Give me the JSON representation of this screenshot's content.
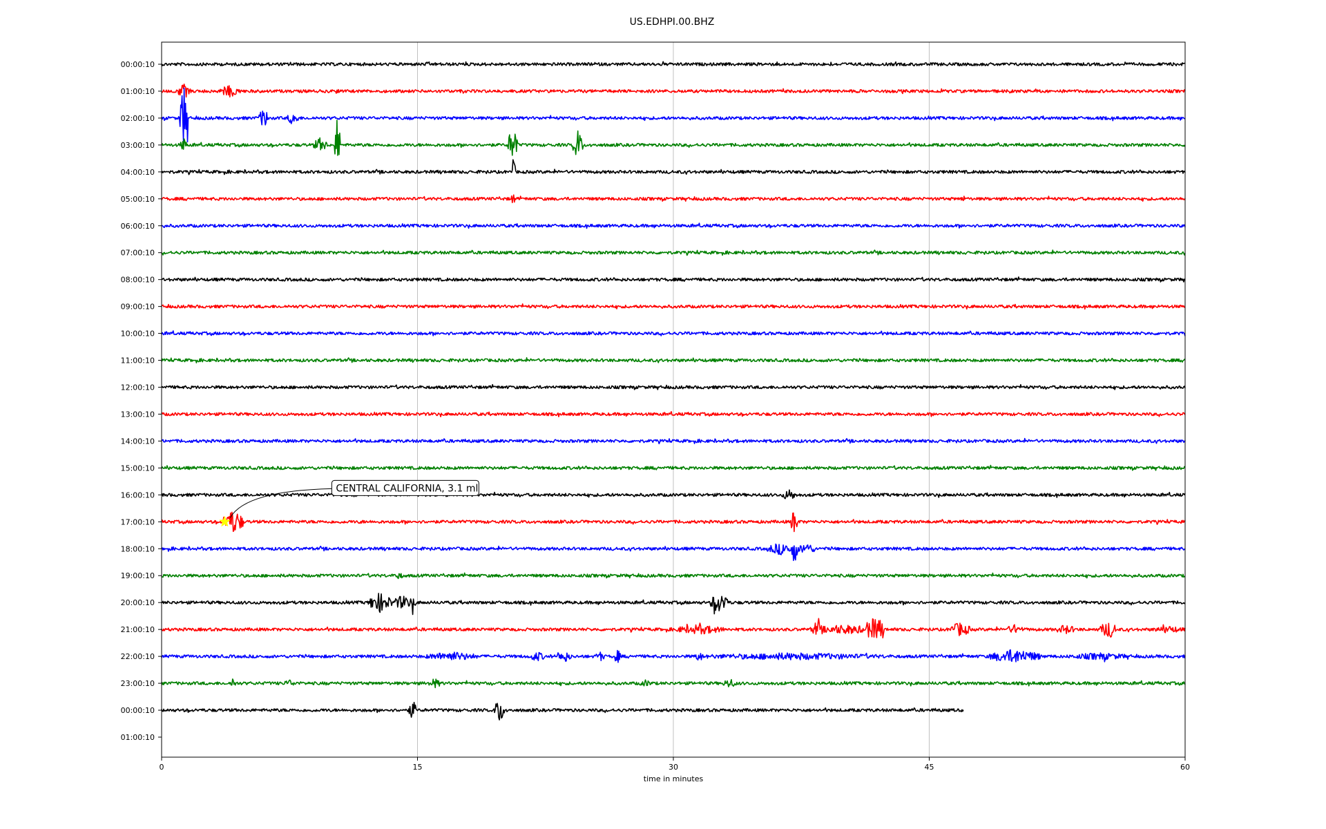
{
  "chart_data": {
    "type": "line",
    "title": "US.EDHPI.00.BHZ",
    "xlabel": "time in minutes",
    "ylabel": "",
    "xlim": [
      0,
      60
    ],
    "x_ticks": [
      "0",
      "15",
      "30",
      "45",
      "60"
    ],
    "x_tick_values": [
      0,
      15,
      30,
      45,
      60
    ],
    "grid": "vertical",
    "row_labels": [
      "00:00:10",
      "01:00:10",
      "02:00:10",
      "03:00:10",
      "04:00:10",
      "05:00:10",
      "06:00:10",
      "07:00:10",
      "08:00:10",
      "09:00:10",
      "10:00:10",
      "11:00:10",
      "12:00:10",
      "13:00:10",
      "14:00:10",
      "15:00:10",
      "16:00:10",
      "17:00:10",
      "18:00:10",
      "19:00:10",
      "20:00:10",
      "21:00:10",
      "22:00:10",
      "23:00:10",
      "00:00:10",
      "01:00:10"
    ],
    "color_cycle": [
      "#000000",
      "#ff0000",
      "#0000ff",
      "#008000"
    ],
    "row_end_minute": [
      60,
      60,
      60,
      60,
      60,
      60,
      60,
      60,
      60,
      60,
      60,
      60,
      60,
      60,
      60,
      60,
      60,
      60,
      60,
      60,
      60,
      60,
      60,
      60,
      47,
      0
    ],
    "events": [
      {
        "row": 1,
        "t": 1.3,
        "amp": 0.6,
        "width": 0.4
      },
      {
        "row": 1,
        "t": 4.0,
        "amp": 0.5,
        "width": 0.6
      },
      {
        "row": 1,
        "t": 10.3,
        "amp": 0.3,
        "width": 0.1
      },
      {
        "row": 2,
        "t": 1.3,
        "amp": 2.6,
        "width": 0.25
      },
      {
        "row": 2,
        "t": 6.0,
        "amp": 0.8,
        "width": 0.3
      },
      {
        "row": 2,
        "t": 7.7,
        "amp": 0.6,
        "width": 0.3
      },
      {
        "row": 3,
        "t": 1.3,
        "amp": 0.6,
        "width": 0.2
      },
      {
        "row": 3,
        "t": 9.3,
        "amp": 0.6,
        "width": 0.4
      },
      {
        "row": 3,
        "t": 10.3,
        "amp": 2.4,
        "width": 0.15
      },
      {
        "row": 3,
        "t": 20.6,
        "amp": 1.4,
        "width": 0.3
      },
      {
        "row": 3,
        "t": 24.4,
        "amp": 1.2,
        "width": 0.3
      },
      {
        "row": 4,
        "t": 20.6,
        "amp": 1.0,
        "width": 0.15
      },
      {
        "row": 5,
        "t": 20.6,
        "amp": 0.6,
        "width": 0.1
      },
      {
        "row": 5,
        "t": 47.0,
        "amp": 0.25,
        "width": 0.2
      },
      {
        "row": 16,
        "t": 36.8,
        "amp": 0.5,
        "width": 0.4
      },
      {
        "row": 17,
        "t": 4.2,
        "amp": 1.0,
        "width": 0.6
      },
      {
        "row": 17,
        "t": 11.7,
        "amp": 0.3,
        "width": 0.1
      },
      {
        "row": 17,
        "t": 37.1,
        "amp": 1.2,
        "width": 0.2
      },
      {
        "row": 18,
        "t": 36.3,
        "amp": 0.5,
        "width": 0.8
      },
      {
        "row": 18,
        "t": 37.1,
        "amp": 1.2,
        "width": 0.2
      },
      {
        "row": 18,
        "t": 37.8,
        "amp": 0.5,
        "width": 0.5
      },
      {
        "row": 19,
        "t": 13.9,
        "amp": 0.3,
        "width": 0.3
      },
      {
        "row": 20,
        "t": 12.8,
        "amp": 0.8,
        "width": 0.7
      },
      {
        "row": 20,
        "t": 14.1,
        "amp": 0.6,
        "width": 0.5
      },
      {
        "row": 20,
        "t": 14.7,
        "amp": 0.6,
        "width": 0.2
      },
      {
        "row": 20,
        "t": 32.6,
        "amp": 0.9,
        "width": 0.4
      },
      {
        "row": 20,
        "t": 33.0,
        "amp": 0.9,
        "width": 0.2
      },
      {
        "row": 21,
        "t": 31.5,
        "amp": 0.4,
        "width": 1.5
      },
      {
        "row": 21,
        "t": 38.4,
        "amp": 0.7,
        "width": 0.3
      },
      {
        "row": 21,
        "t": 40.0,
        "amp": 0.4,
        "width": 2.0
      },
      {
        "row": 21,
        "t": 41.8,
        "amp": 1.0,
        "width": 0.6
      },
      {
        "row": 21,
        "t": 46.8,
        "amp": 0.6,
        "width": 0.6
      },
      {
        "row": 21,
        "t": 50.0,
        "amp": 0.4,
        "width": 0.5
      },
      {
        "row": 21,
        "t": 53.0,
        "amp": 0.4,
        "width": 0.6
      },
      {
        "row": 21,
        "t": 55.5,
        "amp": 0.7,
        "width": 0.5
      },
      {
        "row": 21,
        "t": 59.0,
        "amp": 0.3,
        "width": 1.0
      },
      {
        "row": 22,
        "t": 17.0,
        "amp": 0.4,
        "width": 1.5
      },
      {
        "row": 22,
        "t": 22.0,
        "amp": 0.4,
        "width": 0.5
      },
      {
        "row": 22,
        "t": 23.6,
        "amp": 0.5,
        "width": 0.4
      },
      {
        "row": 22,
        "t": 25.7,
        "amp": 0.4,
        "width": 0.3
      },
      {
        "row": 22,
        "t": 26.7,
        "amp": 0.6,
        "width": 0.2
      },
      {
        "row": 22,
        "t": 31.5,
        "amp": 0.4,
        "width": 0.3
      },
      {
        "row": 22,
        "t": 37.0,
        "amp": 0.3,
        "width": 6.0
      },
      {
        "row": 22,
        "t": 50.0,
        "amp": 0.6,
        "width": 1.5
      },
      {
        "row": 22,
        "t": 55.0,
        "amp": 0.3,
        "width": 2.0
      },
      {
        "row": 23,
        "t": 4.2,
        "amp": 0.5,
        "width": 0.2
      },
      {
        "row": 23,
        "t": 7.5,
        "amp": 0.3,
        "width": 0.4
      },
      {
        "row": 23,
        "t": 16.0,
        "amp": 0.4,
        "width": 0.4
      },
      {
        "row": 23,
        "t": 28.4,
        "amp": 0.3,
        "width": 0.4
      },
      {
        "row": 23,
        "t": 33.3,
        "amp": 0.4,
        "width": 0.4
      },
      {
        "row": 24,
        "t": 14.7,
        "amp": 0.9,
        "width": 0.2
      },
      {
        "row": 24,
        "t": 19.8,
        "amp": 1.0,
        "width": 0.3
      }
    ],
    "annotation": {
      "text": "CENTRAL CALIFORNIA, 3.1 ml",
      "row": 17,
      "t": 3.7,
      "marker": "star",
      "marker_color": "#ffff00"
    }
  }
}
